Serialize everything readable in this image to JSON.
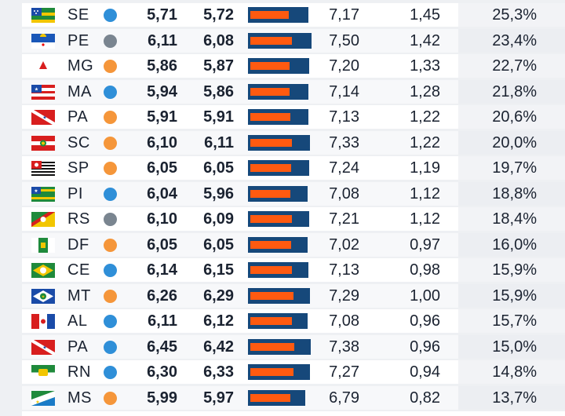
{
  "chart_data": {
    "type": "table",
    "colors": {
      "dot_blue": "#2f8fd8",
      "dot_gray": "#7a8590",
      "dot_orange": "#f5963a",
      "bar_track": "#16487a",
      "bar_fill": "#ff5a10"
    },
    "bar_scale_max": 7.5,
    "rows": [
      {
        "uf": "SE",
        "flag_icon": "flag-se-icon",
        "dot": "dot_blue",
        "v1": "5,71",
        "v2": "5,72",
        "bar_value": 5.72,
        "bar_total": 7.17,
        "v3": "7,17",
        "v4": "1,45",
        "v5": "25,3%"
      },
      {
        "uf": "PE",
        "flag_icon": "flag-pe-icon",
        "dot": "dot_gray",
        "v1": "6,11",
        "v2": "6,08",
        "bar_value": 6.08,
        "bar_total": 7.5,
        "v3": "7,50",
        "v4": "1,42",
        "v5": "23,4%"
      },
      {
        "uf": "MG",
        "flag_icon": "flag-mg-icon",
        "dot": "dot_orange",
        "v1": "5,86",
        "v2": "5,87",
        "bar_value": 5.87,
        "bar_total": 7.2,
        "v3": "7,20",
        "v4": "1,33",
        "v5": "22,7%"
      },
      {
        "uf": "MA",
        "flag_icon": "flag-ma-icon",
        "dot": "dot_blue",
        "v1": "5,94",
        "v2": "5,86",
        "bar_value": 5.86,
        "bar_total": 7.14,
        "v3": "7,14",
        "v4": "1,28",
        "v5": "21,8%"
      },
      {
        "uf": "PA",
        "flag_icon": "flag-pa-icon",
        "dot": "dot_orange",
        "v1": "5,91",
        "v2": "5,91",
        "bar_value": 5.91,
        "bar_total": 7.13,
        "v3": "7,13",
        "v4": "1,22",
        "v5": "20,6%"
      },
      {
        "uf": "SC",
        "flag_icon": "flag-sc-icon",
        "dot": "dot_orange",
        "v1": "6,10",
        "v2": "6,11",
        "bar_value": 6.11,
        "bar_total": 7.33,
        "v3": "7,33",
        "v4": "1,22",
        "v5": "20,0%"
      },
      {
        "uf": "SP",
        "flag_icon": "flag-sp-icon",
        "dot": "dot_orange",
        "v1": "6,05",
        "v2": "6,05",
        "bar_value": 6.05,
        "bar_total": 7.24,
        "v3": "7,24",
        "v4": "1,19",
        "v5": "19,7%"
      },
      {
        "uf": "PI",
        "flag_icon": "flag-pi-icon",
        "dot": "dot_blue",
        "v1": "6,04",
        "v2": "5,96",
        "bar_value": 5.96,
        "bar_total": 7.08,
        "v3": "7,08",
        "v4": "1,12",
        "v5": "18,8%"
      },
      {
        "uf": "RS",
        "flag_icon": "flag-rs-icon",
        "dot": "dot_gray",
        "v1": "6,10",
        "v2": "6,09",
        "bar_value": 6.09,
        "bar_total": 7.21,
        "v3": "7,21",
        "v4": "1,12",
        "v5": "18,4%"
      },
      {
        "uf": "DF",
        "flag_icon": "flag-df-icon",
        "dot": "dot_orange",
        "v1": "6,05",
        "v2": "6,05",
        "bar_value": 6.05,
        "bar_total": 7.02,
        "v3": "7,02",
        "v4": "0,97",
        "v5": "16,0%"
      },
      {
        "uf": "CE",
        "flag_icon": "flag-ce-icon",
        "dot": "dot_blue",
        "v1": "6,14",
        "v2": "6,15",
        "bar_value": 6.15,
        "bar_total": 7.13,
        "v3": "7,13",
        "v4": "0,98",
        "v5": "15,9%"
      },
      {
        "uf": "MT",
        "flag_icon": "flag-mt-icon",
        "dot": "dot_orange",
        "v1": "6,26",
        "v2": "6,29",
        "bar_value": 6.29,
        "bar_total": 7.29,
        "v3": "7,29",
        "v4": "1,00",
        "v5": "15,9%"
      },
      {
        "uf": "AL",
        "flag_icon": "flag-al-icon",
        "dot": "dot_blue",
        "v1": "6,11",
        "v2": "6,12",
        "bar_value": 6.12,
        "bar_total": 7.08,
        "v3": "7,08",
        "v4": "0,96",
        "v5": "15,7%"
      },
      {
        "uf": "PA",
        "flag_icon": "flag-pa-icon",
        "dot": "dot_blue",
        "v1": "6,45",
        "v2": "6,42",
        "bar_value": 6.42,
        "bar_total": 7.38,
        "v3": "7,38",
        "v4": "0,96",
        "v5": "15,0%"
      },
      {
        "uf": "RN",
        "flag_icon": "flag-rn-icon",
        "dot": "dot_blue",
        "v1": "6,30",
        "v2": "6,33",
        "bar_value": 6.33,
        "bar_total": 7.27,
        "v3": "7,27",
        "v4": "0,94",
        "v5": "14,8%"
      },
      {
        "uf": "MS",
        "flag_icon": "flag-ms-icon",
        "dot": "dot_orange",
        "v1": "5,99",
        "v2": "5,97",
        "bar_value": 5.97,
        "bar_total": 6.79,
        "v3": "6,79",
        "v4": "0,82",
        "v5": "13,7%"
      }
    ]
  }
}
